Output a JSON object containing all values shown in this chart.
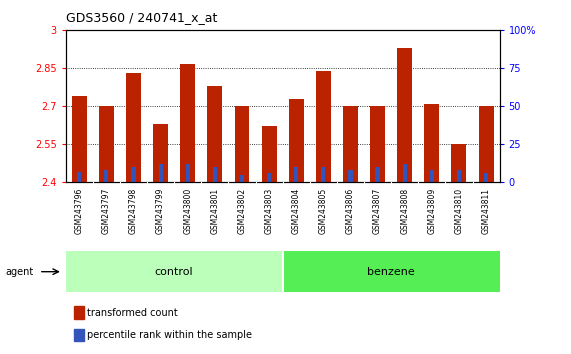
{
  "title": "GDS3560 / 240741_x_at",
  "samples": [
    "GSM243796",
    "GSM243797",
    "GSM243798",
    "GSM243799",
    "GSM243800",
    "GSM243801",
    "GSM243802",
    "GSM243803",
    "GSM243804",
    "GSM243805",
    "GSM243806",
    "GSM243807",
    "GSM243808",
    "GSM243809",
    "GSM243810",
    "GSM243811"
  ],
  "transformed_count": [
    2.74,
    2.7,
    2.83,
    2.63,
    2.865,
    2.78,
    2.7,
    2.62,
    2.73,
    2.84,
    2.7,
    2.7,
    2.93,
    2.71,
    2.55,
    2.7
  ],
  "percentile_rank": [
    7,
    8,
    10,
    12,
    12,
    10,
    5,
    6,
    10,
    10,
    8,
    10,
    12,
    8,
    8,
    6
  ],
  "y_min": 2.4,
  "y_max": 3.0,
  "y_ticks": [
    2.4,
    2.55,
    2.7,
    2.85,
    3.0
  ],
  "y_tick_labels": [
    "2.4",
    "2.55",
    "2.7",
    "2.85",
    "3"
  ],
  "right_y_ticks": [
    0,
    25,
    50,
    75,
    100
  ],
  "right_y_labels": [
    "0",
    "25",
    "50",
    "75",
    "100%"
  ],
  "bar_color": "#bb2200",
  "percentile_color": "#3355bb",
  "control_color_light": "#ccffcc",
  "control_color_dark": "#44dd44",
  "benzene_color_light": "#88ee88",
  "benzene_color_dark": "#22cc22",
  "agent_label": "agent",
  "control_label": "control",
  "benzene_label": "benzene",
  "legend_tc": "transformed count",
  "legend_pr": "percentile rank within the sample",
  "label_bg": "#cccccc",
  "band_border_color": "#000000"
}
